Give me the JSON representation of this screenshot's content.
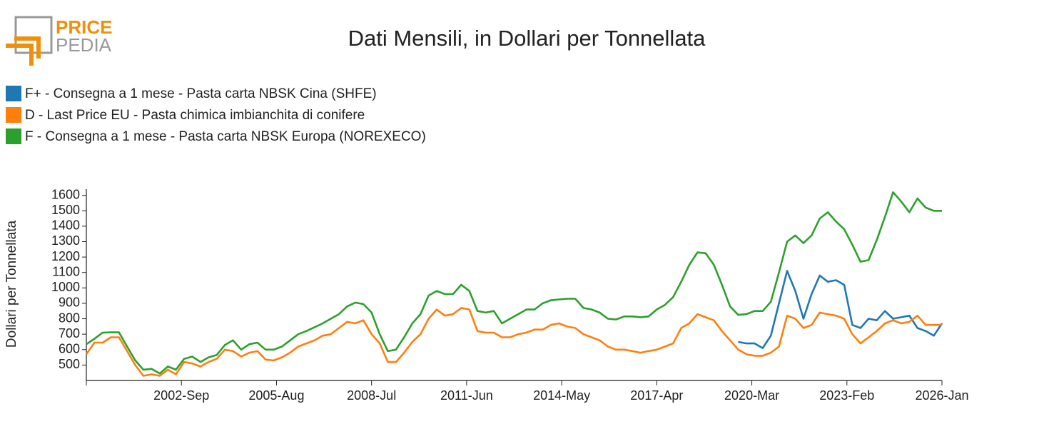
{
  "logo": {
    "top": "PRICE",
    "bottom": "PEDIA"
  },
  "chart_data": {
    "type": "line",
    "title": "Dati Mensili, in Dollari per Tonnellata",
    "y_label": "Dollari per Tonnellata",
    "x": [
      "1999-Oct",
      "2000-Jan",
      "2000-Apr",
      "2000-Jul",
      "2000-Oct",
      "2001-Jan",
      "2001-Apr",
      "2001-Jul",
      "2001-Oct",
      "2002-Jan",
      "2002-Apr",
      "2002-Jul",
      "2002-Oct",
      "2003-Jan",
      "2003-Apr",
      "2003-Jul",
      "2003-Oct",
      "2004-Jan",
      "2004-Apr",
      "2004-Jul",
      "2004-Oct",
      "2005-Jan",
      "2005-Apr",
      "2005-Jul",
      "2005-Oct",
      "2006-Jan",
      "2006-Apr",
      "2006-Jul",
      "2006-Oct",
      "2007-Jan",
      "2007-Apr",
      "2007-Jul",
      "2007-Oct",
      "2008-Jan",
      "2008-Apr",
      "2008-Jul",
      "2008-Oct",
      "2009-Jan",
      "2009-Apr",
      "2009-Jul",
      "2009-Oct",
      "2010-Jan",
      "2010-Apr",
      "2010-Jul",
      "2010-Oct",
      "2011-Jan",
      "2011-Apr",
      "2011-Jul",
      "2011-Oct",
      "2012-Jan",
      "2012-Apr",
      "2012-Jul",
      "2012-Oct",
      "2013-Jan",
      "2013-Apr",
      "2013-Jul",
      "2013-Oct",
      "2014-Jan",
      "2014-Apr",
      "2014-Jul",
      "2014-Oct",
      "2015-Jan",
      "2015-Apr",
      "2015-Jul",
      "2015-Oct",
      "2016-Jan",
      "2016-Apr",
      "2016-Jul",
      "2016-Oct",
      "2017-Jan",
      "2017-Apr",
      "2017-Jul",
      "2017-Oct",
      "2018-Jan",
      "2018-Apr",
      "2018-Jul",
      "2018-Oct",
      "2019-Jan",
      "2019-Apr",
      "2019-Jul",
      "2019-Oct",
      "2020-Jan",
      "2020-Apr",
      "2020-Jul",
      "2020-Oct",
      "2021-Jan",
      "2021-Apr",
      "2021-Jul",
      "2021-Oct",
      "2022-Jan",
      "2022-Apr",
      "2022-Jul",
      "2022-Oct",
      "2023-Jan",
      "2023-Apr",
      "2023-Jul",
      "2023-Oct",
      "2024-Jan",
      "2024-Apr",
      "2024-Jul",
      "2024-Oct",
      "2025-Jan",
      "2025-Apr",
      "2025-Jul",
      "2025-Oct",
      "2026-Jan"
    ],
    "series": [
      {
        "name": "F+ - Consegna a 1 mese - Pasta carta NBSK Cina (SHFE)",
        "color": "#1f77b4",
        "values": [
          null,
          null,
          null,
          null,
          null,
          null,
          null,
          null,
          null,
          null,
          null,
          null,
          null,
          null,
          null,
          null,
          null,
          null,
          null,
          null,
          null,
          null,
          null,
          null,
          null,
          null,
          null,
          null,
          null,
          null,
          null,
          null,
          null,
          null,
          null,
          null,
          null,
          null,
          null,
          null,
          null,
          null,
          null,
          null,
          null,
          null,
          null,
          null,
          null,
          null,
          null,
          null,
          null,
          null,
          null,
          null,
          null,
          null,
          null,
          null,
          null,
          null,
          null,
          null,
          null,
          null,
          null,
          null,
          null,
          null,
          null,
          null,
          null,
          null,
          null,
          null,
          null,
          null,
          null,
          null,
          650,
          640,
          640,
          610,
          690,
          900,
          1110,
          980,
          800,
          960,
          1080,
          1040,
          1050,
          1020,
          760,
          740,
          800,
          790,
          850,
          800,
          810,
          820,
          740,
          720,
          690,
          770
        ]
      },
      {
        "name": "D - Last Price EU - Pasta chimica imbianchita di conifere",
        "color": "#ff7f0e",
        "values": [
          570,
          645,
          645,
          680,
          680,
          590,
          500,
          430,
          440,
          430,
          470,
          440,
          520,
          510,
          490,
          520,
          540,
          600,
          590,
          555,
          580,
          590,
          535,
          530,
          550,
          580,
          620,
          640,
          660,
          690,
          700,
          740,
          780,
          770,
          790,
          700,
          640,
          520,
          520,
          580,
          650,
          700,
          800,
          860,
          820,
          830,
          870,
          860,
          720,
          710,
          710,
          680,
          680,
          700,
          710,
          730,
          730,
          760,
          770,
          750,
          740,
          700,
          680,
          660,
          620,
          600,
          600,
          590,
          580,
          590,
          600,
          620,
          640,
          740,
          770,
          830,
          810,
          790,
          720,
          660,
          600,
          570,
          560,
          560,
          580,
          620,
          820,
          800,
          740,
          760,
          840,
          830,
          820,
          800,
          700,
          640,
          680,
          720,
          770,
          790,
          770,
          780,
          820,
          760,
          760,
          760
        ]
      },
      {
        "name": "F - Consegna a 1 mese - Pasta carta NBSK Europa (NOREXECO)",
        "color": "#2ca02c",
        "values": [
          635,
          670,
          710,
          712,
          712,
          620,
          530,
          470,
          475,
          445,
          490,
          470,
          540,
          555,
          520,
          550,
          565,
          630,
          660,
          600,
          635,
          645,
          600,
          600,
          620,
          660,
          700,
          720,
          745,
          770,
          800,
          830,
          880,
          905,
          895,
          840,
          700,
          590,
          600,
          680,
          770,
          830,
          950,
          980,
          960,
          960,
          1020,
          980,
          850,
          840,
          850,
          770,
          800,
          830,
          860,
          860,
          900,
          920,
          925,
          930,
          930,
          870,
          860,
          840,
          800,
          795,
          815,
          815,
          810,
          815,
          860,
          890,
          940,
          1040,
          1150,
          1230,
          1225,
          1150,
          1020,
          880,
          825,
          830,
          850,
          850,
          910,
          1100,
          1300,
          1340,
          1290,
          1340,
          1450,
          1490,
          1430,
          1380,
          1280,
          1170,
          1180,
          1310,
          1460,
          1620,
          1560,
          1490,
          1580,
          1520,
          1500,
          1500
        ]
      }
    ],
    "xlim": [
      "1999-Oct",
      "2026-Jan"
    ],
    "xticks": [
      "2002-Sep",
      "2005-Aug",
      "2008-Jul",
      "2011-Jun",
      "2014-May",
      "2017-Apr",
      "2020-Mar",
      "2023-Feb",
      "2026-Jan"
    ],
    "ylim": [
      400,
      1640
    ],
    "yticks": [
      500,
      600,
      700,
      800,
      900,
      1000,
      1100,
      1200,
      1300,
      1400,
      1500,
      1600
    ],
    "grid": false,
    "legend": "top-left"
  }
}
